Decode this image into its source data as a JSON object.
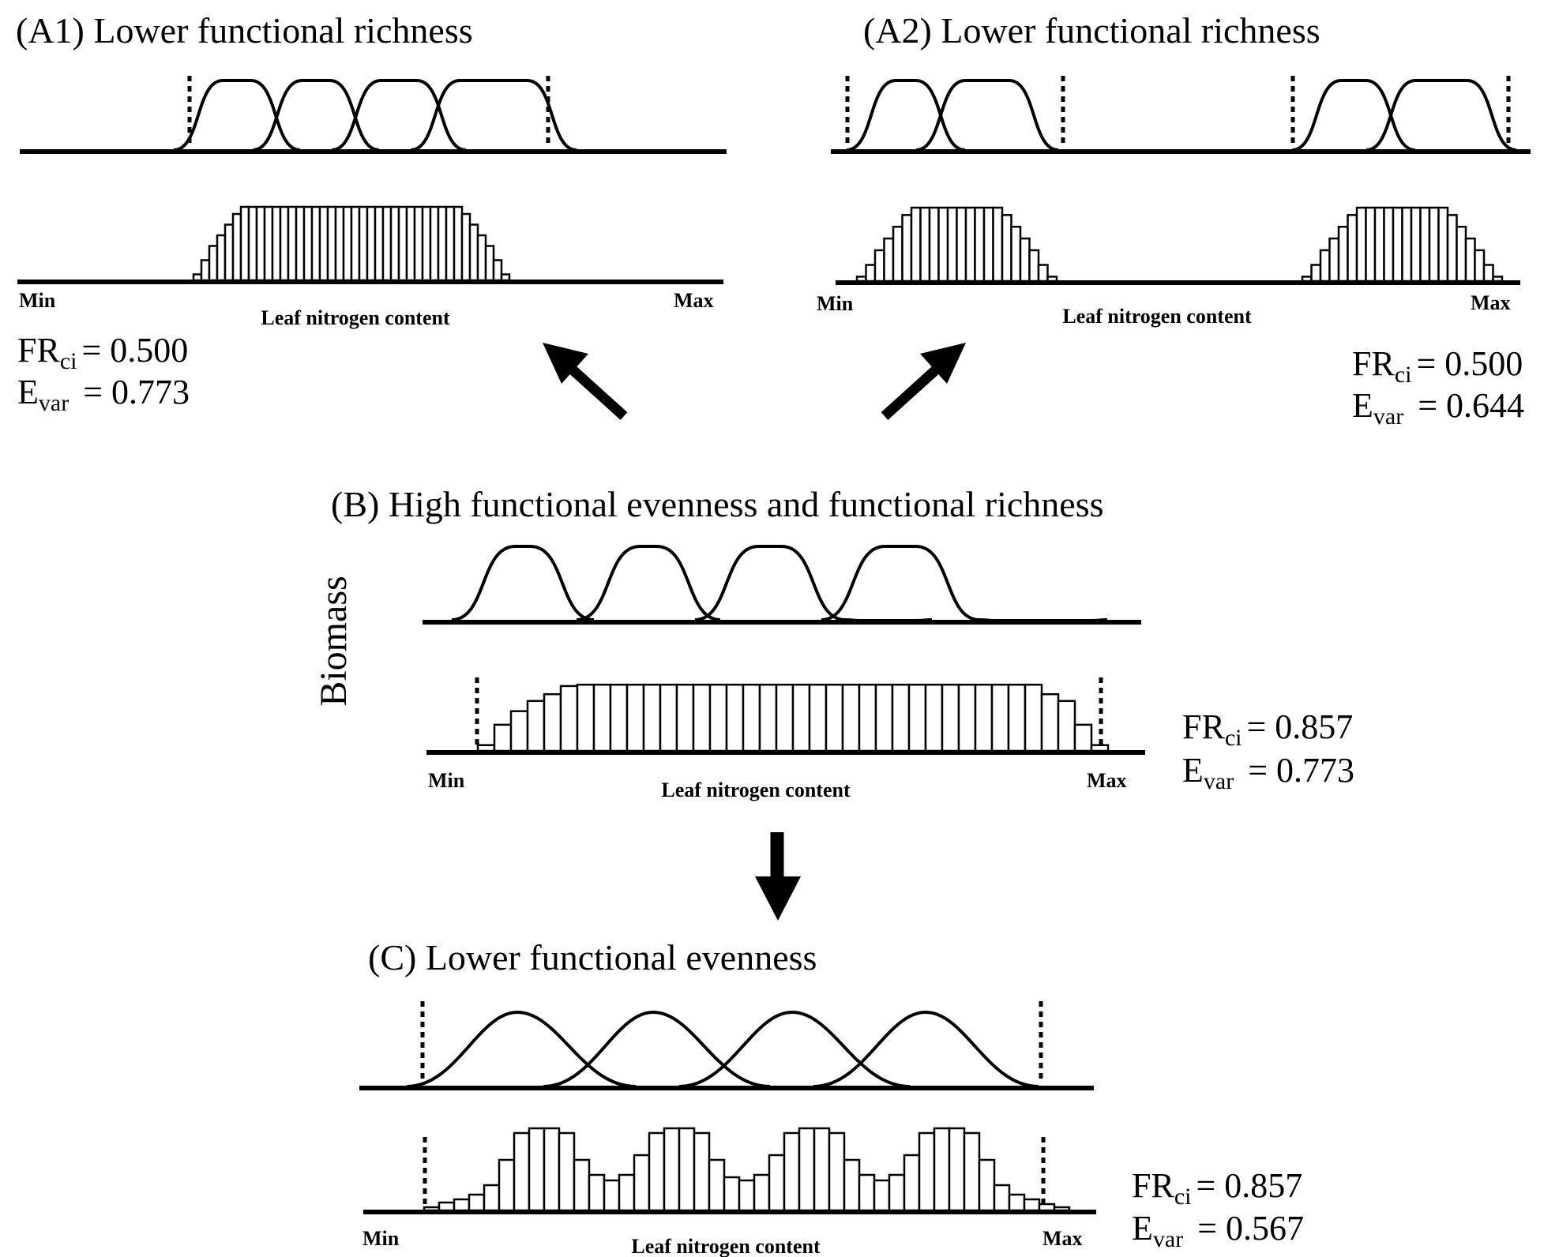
{
  "axis": {
    "min_label": "Min",
    "max_label": "Max",
    "x_label": "Leaf nitrogen content",
    "y_label": "Biomass"
  },
  "panels": {
    "a1": {
      "title": "(A1) Lower functional richness",
      "fr_label": "FR",
      "fr_sub": "ci",
      "fr_value": "= 0.500",
      "e_label": "E",
      "e_sub": "var",
      "e_value": "= 0.773"
    },
    "a2": {
      "title": "(A2) Lower functional richness",
      "fr_label": "FR",
      "fr_sub": "ci",
      "fr_value": "= 0.500",
      "e_label": "E",
      "e_sub": "var",
      "e_value": "= 0.644"
    },
    "b": {
      "title": "(B) High functional evenness and functional richness",
      "fr_label": "FR",
      "fr_sub": "ci",
      "fr_value": "= 0.857",
      "e_label": "E",
      "e_sub": "var",
      "e_value": "= 0.773"
    },
    "c": {
      "title": "(C) Lower functional evenness",
      "fr_label": "FR",
      "fr_sub": "ci",
      "fr_value": "= 0.857",
      "e_label": "E",
      "e_sub": "var",
      "e_value": "= 0.567"
    }
  },
  "colors": {
    "ink": "#000000",
    "bar_fill": "#ffffff",
    "background": "#ffffff"
  }
}
